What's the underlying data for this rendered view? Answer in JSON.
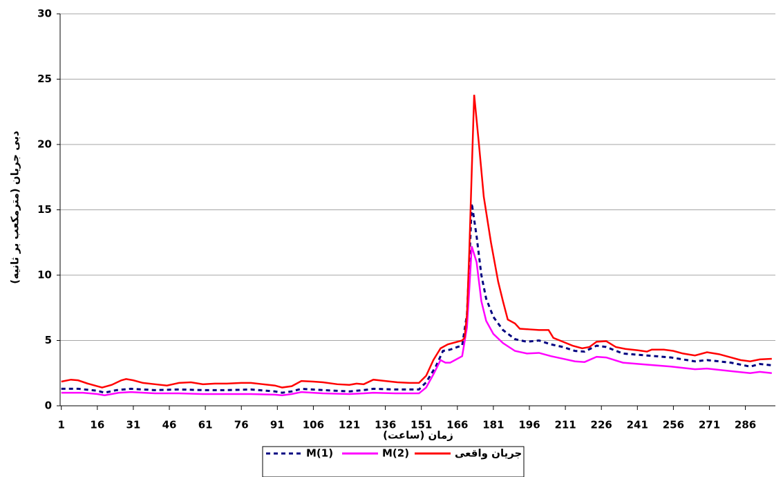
{
  "chart_data": {
    "type": "line",
    "x_label": "زمان (ساعت)",
    "y_label": "دبی جریان (مترمکعب بر ثانیه)",
    "xlim": [
      0.5,
      298.5
    ],
    "xticks": [
      1,
      16,
      31,
      46,
      61,
      76,
      91,
      106,
      121,
      136,
      151,
      166,
      181,
      196,
      211,
      226,
      241,
      256,
      271,
      286
    ],
    "ylim": [
      0,
      30
    ],
    "yticks": [
      0,
      5,
      10,
      15,
      20,
      25,
      30
    ],
    "grid": true,
    "legend": "bottom",
    "series": [
      {
        "name": "M(1)",
        "color": "#000080",
        "dash": "6,5",
        "x": [
          1,
          8,
          16,
          19,
          24,
          30,
          40,
          50,
          60,
          70,
          80,
          90,
          93,
          97,
          101,
          110,
          121,
          127,
          131,
          140,
          150,
          153,
          157,
          160,
          163,
          166,
          168,
          170,
          171,
          172,
          174,
          176,
          178,
          181,
          185,
          190,
          195,
          200,
          205,
          210,
          215,
          219,
          224,
          228,
          235,
          245,
          255,
          265,
          270,
          280,
          288,
          292,
          297
        ],
        "values": [
          1.3,
          1.3,
          1.15,
          1.0,
          1.2,
          1.3,
          1.2,
          1.25,
          1.2,
          1.2,
          1.25,
          1.1,
          1.0,
          1.1,
          1.3,
          1.2,
          1.1,
          1.2,
          1.3,
          1.25,
          1.25,
          1.8,
          3.0,
          4.2,
          4.3,
          4.5,
          4.6,
          7,
          11,
          15.5,
          13,
          10,
          8.2,
          6.8,
          5.8,
          5.1,
          4.9,
          5.0,
          4.7,
          4.5,
          4.2,
          4.15,
          4.6,
          4.5,
          4.0,
          3.85,
          3.7,
          3.4,
          3.5,
          3.3,
          3.0,
          3.2,
          3.1
        ]
      },
      {
        "name": "M(2)",
        "color": "#ff00ff",
        "dash": "",
        "x": [
          1,
          10,
          16,
          19,
          25,
          30,
          40,
          50,
          60,
          70,
          80,
          90,
          93,
          97,
          101,
          110,
          121,
          127,
          131,
          140,
          150,
          153,
          156,
          159,
          161,
          163,
          165,
          168,
          170,
          171,
          172,
          174,
          176,
          178,
          181,
          185,
          190,
          195,
          200,
          205,
          210,
          215,
          219,
          224,
          228,
          235,
          245,
          255,
          265,
          270,
          280,
          288,
          292,
          297
        ],
        "values": [
          1.0,
          1.0,
          0.9,
          0.8,
          1.0,
          1.05,
          0.95,
          0.95,
          0.9,
          0.9,
          0.9,
          0.85,
          0.8,
          0.9,
          1.05,
          0.95,
          0.9,
          0.95,
          1.0,
          0.95,
          0.95,
          1.4,
          2.4,
          3.5,
          3.3,
          3.3,
          3.5,
          3.8,
          6,
          9,
          12.2,
          11,
          8,
          6.5,
          5.5,
          4.8,
          4.2,
          4.0,
          4.05,
          3.8,
          3.6,
          3.4,
          3.35,
          3.75,
          3.7,
          3.3,
          3.15,
          3.0,
          2.8,
          2.85,
          2.65,
          2.5,
          2.6,
          2.5
        ]
      },
      {
        "name": "جریان واقعی",
        "color": "#ff0000",
        "dash": "",
        "x": [
          1,
          5,
          8,
          12,
          16,
          18,
          22,
          26,
          28,
          31,
          35,
          40,
          45,
          50,
          55,
          60,
          65,
          70,
          76,
          80,
          85,
          90,
          93,
          97,
          101,
          106,
          110,
          116,
          121,
          124,
          127,
          131,
          136,
          141,
          146,
          150,
          153,
          156,
          159,
          162,
          166,
          168,
          169,
          170,
          171,
          172,
          173,
          175,
          177,
          180,
          183,
          185,
          187,
          190,
          192,
          196,
          200,
          204,
          206,
          210,
          214,
          218,
          221,
          224,
          228,
          232,
          236,
          241,
          245,
          247,
          252,
          256,
          260,
          265,
          270,
          275,
          280,
          284,
          288,
          292,
          297
        ],
        "values": [
          1.85,
          2.0,
          1.95,
          1.7,
          1.5,
          1.4,
          1.6,
          1.95,
          2.05,
          1.95,
          1.75,
          1.65,
          1.55,
          1.75,
          1.8,
          1.65,
          1.7,
          1.7,
          1.75,
          1.75,
          1.65,
          1.55,
          1.4,
          1.5,
          1.9,
          1.85,
          1.8,
          1.65,
          1.6,
          1.7,
          1.65,
          2.0,
          1.9,
          1.8,
          1.75,
          1.75,
          2.3,
          3.5,
          4.4,
          4.7,
          4.9,
          5.0,
          5.2,
          7,
          12,
          18,
          23.8,
          20,
          16,
          12.5,
          9.5,
          8,
          6.6,
          6.3,
          5.9,
          5.85,
          5.8,
          5.8,
          5.2,
          4.9,
          4.6,
          4.4,
          4.5,
          4.9,
          4.95,
          4.5,
          4.35,
          4.25,
          4.15,
          4.3,
          4.3,
          4.2,
          4.0,
          3.85,
          4.1,
          3.95,
          3.7,
          3.5,
          3.4,
          3.55,
          3.6
        ]
      }
    ]
  }
}
